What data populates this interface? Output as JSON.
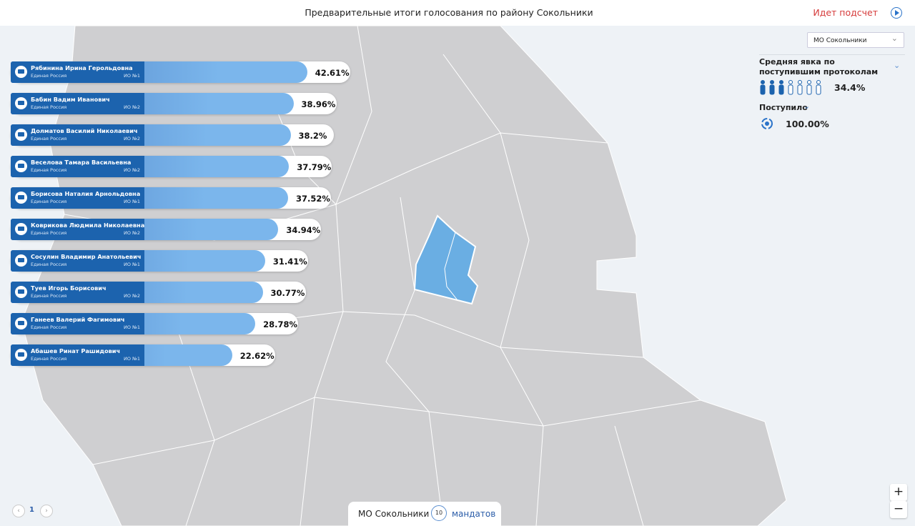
{
  "header": {
    "title": "Предварительные итоги голосования по району Сокольники",
    "status": "Идет подсчет"
  },
  "district_select": "МО Сокольники",
  "candidates": [
    {
      "name": "Рябинина Ирина Герольдовна",
      "party": "Единая Россия",
      "district": "ИО №1",
      "value": 42.61,
      "value_label": "42.61%"
    },
    {
      "name": "Бабин Вадим Иванович",
      "party": "Единая Россия",
      "district": "ИО №2",
      "value": 38.96,
      "value_label": "38.96%"
    },
    {
      "name": "Долматов Василий Николаевич",
      "party": "Единая Россия",
      "district": "ИО №2",
      "value": 38.2,
      "value_label": "38.2%"
    },
    {
      "name": "Веселова Тамара Васильевна",
      "party": "Единая Россия",
      "district": "ИО №2",
      "value": 37.79,
      "value_label": "37.79%"
    },
    {
      "name": "Борисова Наталия Арнольдовна",
      "party": "Единая Россия",
      "district": "ИО №1",
      "value": 37.52,
      "value_label": "37.52%"
    },
    {
      "name": "Коврикова Людмила Николаевна",
      "party": "Единая Россия",
      "district": "ИО №2",
      "value": 34.94,
      "value_label": "34.94%"
    },
    {
      "name": "Сосулин Владимир Анатольевич",
      "party": "Единая Россия",
      "district": "ИО №1",
      "value": 31.41,
      "value_label": "31.41%"
    },
    {
      "name": "Туев Игорь Борисович",
      "party": "Единая Россия",
      "district": "ИО №2",
      "value": 30.77,
      "value_label": "30.77%"
    },
    {
      "name": "Ганеев Валерий Фагимович",
      "party": "Единая Россия",
      "district": "ИО №1",
      "value": 28.78,
      "value_label": "28.78%"
    },
    {
      "name": "Абашев Ринат Рашидович",
      "party": "Единая Россия",
      "district": "ИО №1",
      "value": 22.62,
      "value_label": "22.62%"
    }
  ],
  "turnout": {
    "title": "Средняя явка по поступившим протоколам",
    "value": 34.4,
    "value_label": "34.4%"
  },
  "received": {
    "title": "Поступило",
    "value": 100,
    "value_label": "100.00%"
  },
  "footer": {
    "district": "МО Сокольники",
    "mandates": "10",
    "mandates_label": "мандатов"
  },
  "pagination": {
    "page": "1"
  },
  "zoom": {
    "in": "+",
    "out": "−"
  }
}
